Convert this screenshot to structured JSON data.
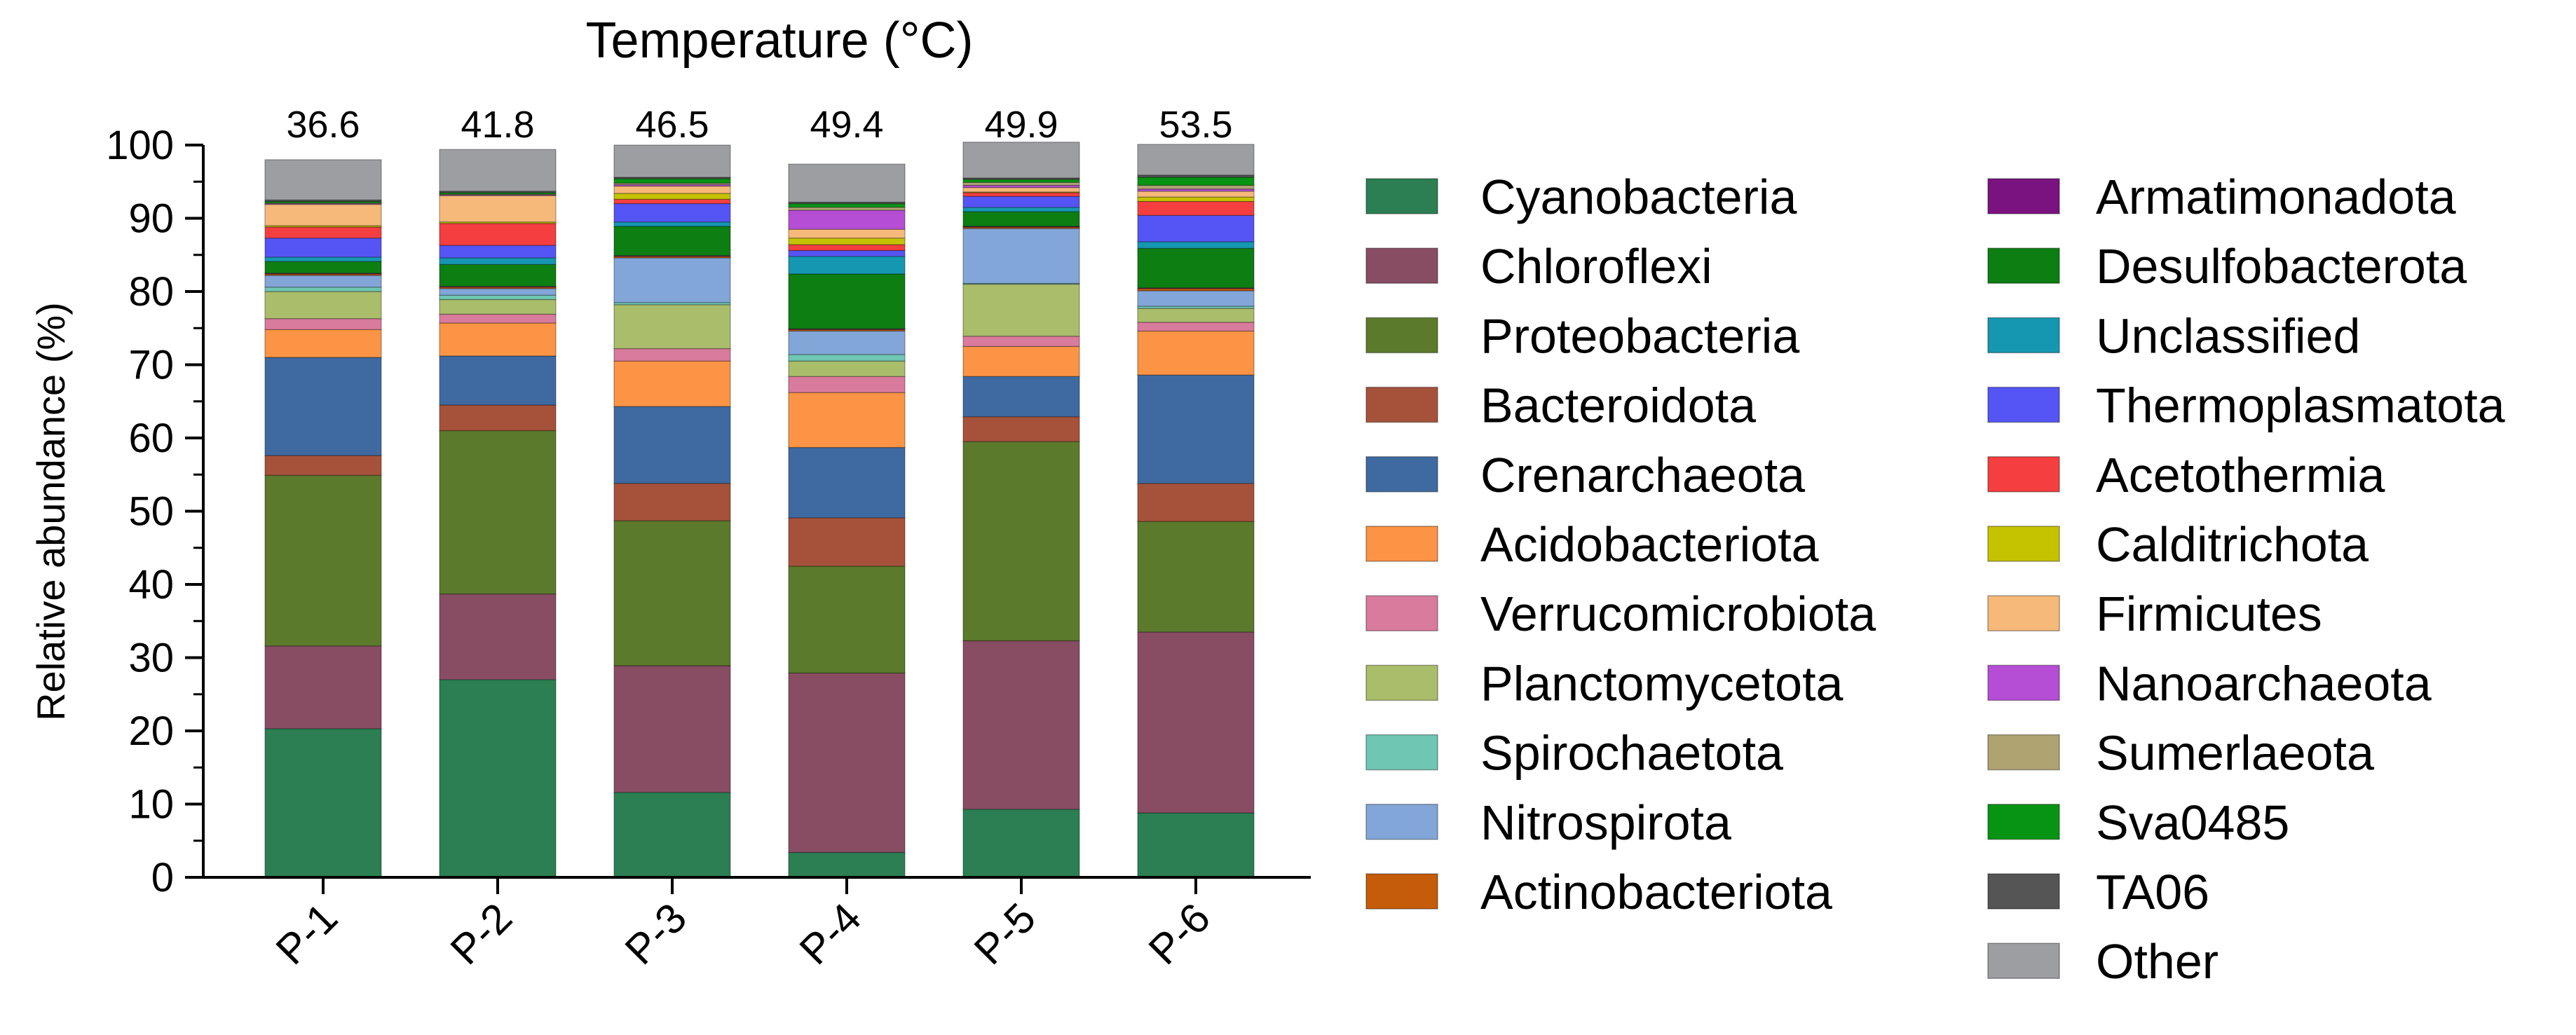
{
  "chart_data": {
    "type": "bar",
    "stacked": true,
    "title": "Temperature (°C)",
    "xlabel": "",
    "ylabel": "Relative abundance (%)",
    "ylim": [
      0,
      100
    ],
    "yticks": [
      "0",
      "10",
      "20",
      "30",
      "40",
      "50",
      "60",
      "70",
      "80",
      "90",
      "100"
    ],
    "categories": [
      "P-1",
      "P-2",
      "P-3",
      "P-4",
      "P-5",
      "P-6"
    ],
    "temperatures": [
      "36.6",
      "41.8",
      "46.5",
      "49.4",
      "49.9",
      "53.5"
    ],
    "legend_position": "right",
    "series": [
      {
        "name": "Cyanobacteria",
        "color": "#2b7f52",
        "values": [
          20.3,
          27.0,
          11.6,
          3.4,
          9.3,
          8.8
        ]
      },
      {
        "name": "Chloroflexi",
        "color": "#884d63",
        "values": [
          11.3,
          11.7,
          17.3,
          24.5,
          23.0,
          24.7
        ]
      },
      {
        "name": "Proteobacteria",
        "color": "#5b7a2b",
        "values": [
          23.3,
          22.3,
          19.8,
          14.6,
          27.2,
          15.1
        ]
      },
      {
        "name": "Bacteroidota",
        "color": "#a6523b",
        "values": [
          2.7,
          3.5,
          5.1,
          6.6,
          3.4,
          5.2
        ]
      },
      {
        "name": "Crenarchaeota",
        "color": "#3f6aa1",
        "values": [
          13.4,
          6.7,
          10.5,
          9.6,
          5.5,
          14.8
        ]
      },
      {
        "name": "Acidobacteriota",
        "color": "#fb9444",
        "values": [
          3.8,
          4.5,
          6.2,
          7.5,
          4.1,
          6.0
        ]
      },
      {
        "name": "Verrucomicrobiota",
        "color": "#d97b9c",
        "values": [
          1.5,
          1.2,
          1.7,
          2.2,
          1.4,
          1.2
        ]
      },
      {
        "name": "Planctomycetota",
        "color": "#aabd6b",
        "values": [
          3.7,
          2.0,
          6.0,
          2.1,
          7.1,
          1.9
        ]
      },
      {
        "name": "Spirochaetota",
        "color": "#6fc7b3",
        "values": [
          0.6,
          0.6,
          0.3,
          0.9,
          0.1,
          0.3
        ]
      },
      {
        "name": "Nitrospirota",
        "color": "#83a6d9",
        "values": [
          1.6,
          0.9,
          6.1,
          3.2,
          7.5,
          2.1
        ]
      },
      {
        "name": "Actinobacteriota",
        "color": "#c45c0a",
        "values": [
          0.2,
          0.2,
          0.2,
          0.2,
          0.2,
          0.3
        ]
      },
      {
        "name": "Armatimonadota",
        "color": "#7a137f",
        "values": [
          0.1,
          0.1,
          0.1,
          0.1,
          0.1,
          0.1
        ]
      },
      {
        "name": "Desulfobacterota",
        "color": "#0c7e12",
        "values": [
          1.6,
          3.0,
          4.0,
          7.5,
          2.0,
          5.4
        ]
      },
      {
        "name": "Unclassified",
        "color": "#1597b1",
        "values": [
          0.6,
          0.9,
          0.6,
          2.4,
          0.6,
          0.9
        ]
      },
      {
        "name": "Thermoplasmatota",
        "color": "#5555f5",
        "values": [
          2.6,
          1.7,
          2.5,
          0.8,
          1.5,
          3.6
        ]
      },
      {
        "name": "Acetothermia",
        "color": "#f53e40",
        "values": [
          1.5,
          3.0,
          0.6,
          0.8,
          0.5,
          1.9
        ]
      },
      {
        "name": "Calditrichota",
        "color": "#c5c200",
        "values": [
          0.2,
          0.2,
          0.8,
          0.9,
          0.1,
          0.6
        ]
      },
      {
        "name": "Firmicutes",
        "color": "#f6b97a",
        "values": [
          2.9,
          3.6,
          1.0,
          1.2,
          0.6,
          0.8
        ]
      },
      {
        "name": "Nanoarchaeota",
        "color": "#b54ed4",
        "values": [
          0.1,
          0.1,
          0.2,
          2.6,
          0.3,
          0.3
        ]
      },
      {
        "name": "Sumerlaeota",
        "color": "#b0a372",
        "values": [
          0.1,
          0.1,
          0.2,
          0.4,
          0.4,
          0.5
        ]
      },
      {
        "name": "Sva0485",
        "color": "#079413",
        "values": [
          0.2,
          0.2,
          0.6,
          0.5,
          0.4,
          1.1
        ]
      },
      {
        "name": "TA06",
        "color": "#555555",
        "values": [
          0.2,
          0.2,
          0.2,
          0.2,
          0.2,
          0.3
        ]
      },
      {
        "name": "Other",
        "color": "#9d9ea2",
        "values": [
          5.5,
          5.7,
          4.4,
          5.2,
          4.9,
          4.2
        ]
      }
    ]
  }
}
